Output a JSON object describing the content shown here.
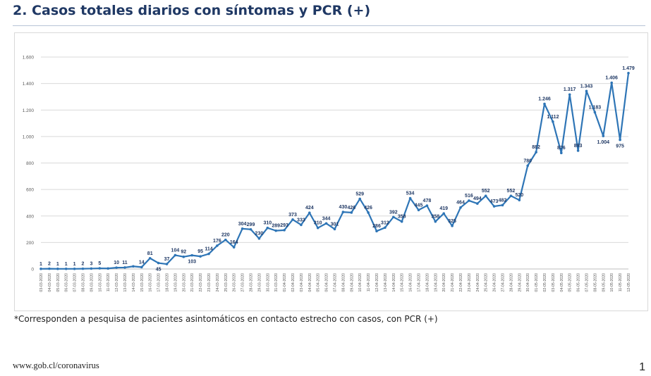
{
  "title": "2. Casos totales diarios con síntomas y PCR (+)",
  "footnote": "*Corresponden a pesquisa de pacientes asintomáticos en contacto estrecho con casos, con PCR (+)",
  "source": "www.gob.cl/coronavirus",
  "page_number": "1",
  "colors": {
    "line": "#2e75b6",
    "label": "#1f3864",
    "grid": "#d9d9d9",
    "axis_text": "#595959"
  },
  "chart_data": {
    "type": "line",
    "title": "",
    "xlabel": "",
    "ylabel": "",
    "ylim": [
      0,
      1600
    ],
    "yticks": [
      0,
      200,
      400,
      600,
      800,
      1000,
      1200,
      1400,
      1600
    ],
    "ytick_labels": [
      "0",
      "200",
      "400",
      "600",
      "800",
      "1.000",
      "1.200",
      "1.400",
      "1.600"
    ],
    "grid": true,
    "legend": "none",
    "categories": [
      "03-03-2020",
      "04-03-2020",
      "05-03-2020",
      "06-03-2020",
      "07-03-2020",
      "08-03-2020",
      "09-03-2020",
      "10-03-2020",
      "11-03-2020",
      "12-03-2020",
      "13-03-2020",
      "14-03-2020",
      "15-03-2020",
      "16-03-2020",
      "17-03-2020",
      "18-03-2020",
      "19-03-2020",
      "20-03-2020",
      "21-03-2020",
      "22-03-2020",
      "23-03-2020",
      "24-03-2020",
      "25-03-2020",
      "26-03-2020",
      "27-03-2020",
      "28-03-2020",
      "29-03-2020",
      "30-03-2020",
      "31-03-2020",
      "01-04-2020",
      "02-04-2020",
      "03-04-2020",
      "04-04-2020",
      "05-04-2020",
      "06-04-2020",
      "07-04-2020",
      "08-04-2020",
      "09-04-2020",
      "10-04-2020",
      "11-04-2020",
      "12-04-2020",
      "13-04-2020",
      "14-04-2020",
      "15-04-2020",
      "16-04-2020",
      "17-04-2020",
      "18-04-2020",
      "19-04-2020",
      "20-04-2020",
      "21-04-2020",
      "22-04-2020",
      "23-04-2020",
      "24-04-2020",
      "25-04-2020",
      "26-04-2020",
      "27-04-2020",
      "28-04-2020",
      "29-04-2020",
      "30-04-2020",
      "01-05-2020",
      "02-05-2020",
      "03-05-2020",
      "04-05-2020",
      "05-05-2020",
      "06-05-2020",
      "07-05-2020",
      "08-05-2020",
      "09-05-2020",
      "10-05-2020",
      "11-05-2020",
      "12-05-2020"
    ],
    "values": [
      1,
      2,
      1,
      1,
      1,
      2,
      3,
      5,
      4,
      10,
      11,
      20,
      14,
      81,
      45,
      37,
      104,
      92,
      103,
      95,
      114,
      176,
      220,
      164,
      304,
      299,
      230,
      310,
      289,
      293,
      373,
      333,
      424,
      310,
      344,
      301,
      430,
      426,
      529,
      426,
      286,
      312,
      392,
      358,
      534,
      445,
      478,
      358,
      419,
      325,
      464,
      516,
      494,
      552,
      473,
      482,
      552,
      520,
      780,
      882,
      1246,
      1112,
      876,
      1317,
      893,
      1343,
      1183,
      1004,
      1406,
      975,
      1479
    ],
    "labels": [
      "1",
      "2",
      "1",
      "1",
      "1",
      "2",
      "3",
      "5",
      "",
      "10",
      "11",
      "",
      "14",
      "81",
      "45",
      "37",
      "104",
      "92",
      "103",
      "95",
      "114",
      "176",
      "220",
      "164",
      "304",
      "299",
      "230",
      "310",
      "289",
      "293",
      "373",
      "333",
      "424",
      "310",
      "344",
      "301",
      "430",
      "426",
      "529",
      "426",
      "286",
      "312",
      "392",
      "358",
      "534",
      "445",
      "478",
      "358",
      "419",
      "325",
      "464",
      "516",
      "494",
      "552",
      "473",
      "482",
      "552",
      "520",
      "780",
      "882",
      "1.246",
      "1.112",
      "876",
      "1.317",
      "893",
      "1.343",
      "1.183",
      "1.004",
      "1.406",
      "975",
      "1.479"
    ],
    "label_position": [
      "above",
      "above",
      "above",
      "above",
      "above",
      "above",
      "above",
      "above",
      "above",
      "above",
      "above",
      "above",
      "above",
      "above",
      "below",
      "above",
      "above",
      "above",
      "below",
      "above",
      "above",
      "above",
      "above",
      "above",
      "above",
      "above",
      "above",
      "above",
      "above",
      "above",
      "above",
      "above",
      "above",
      "above",
      "above",
      "above",
      "above",
      "above",
      "above",
      "above",
      "above",
      "above",
      "above",
      "above",
      "above",
      "above",
      "above",
      "above",
      "above",
      "above",
      "above",
      "above",
      "above",
      "above",
      "above",
      "above",
      "above",
      "above",
      "above",
      "above",
      "above",
      "above",
      "above",
      "above",
      "above",
      "above",
      "above",
      "below",
      "above",
      "below",
      "above"
    ]
  }
}
